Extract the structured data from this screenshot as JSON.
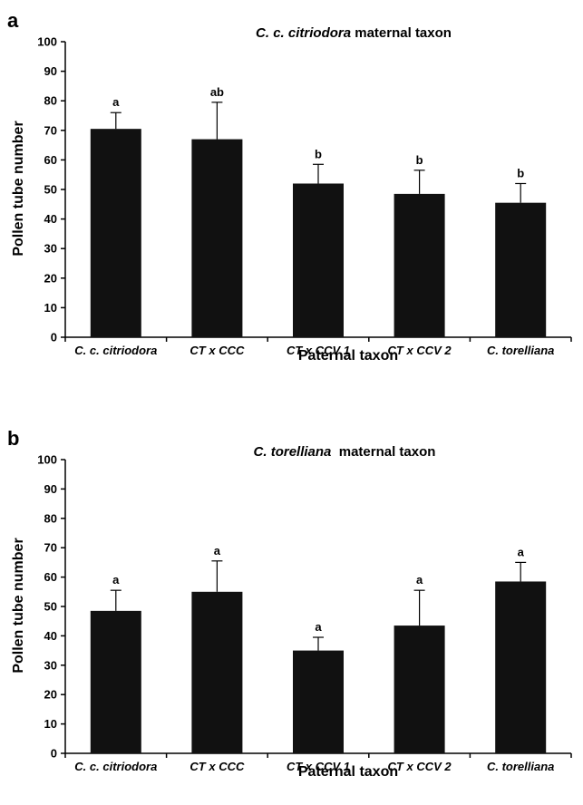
{
  "chart_data": [
    {
      "type": "bar",
      "panel": "a",
      "title_italic": "C. c. citriodora",
      "title_rest": " maternal taxon",
      "xlabel": "Paternal taxon",
      "ylabel": "Pollen tube number",
      "ylim": [
        0,
        100
      ],
      "yticks": [
        0,
        10,
        20,
        30,
        40,
        50,
        60,
        70,
        80,
        90,
        100
      ],
      "categories": [
        "C. c. citriodora",
        "CT x CCC",
        "CT x CCV 1",
        "CT x CCV 2",
        "C. torelliana"
      ],
      "values": [
        70.5,
        67,
        52,
        48.5,
        45.5
      ],
      "errors": [
        5.5,
        12.5,
        6.5,
        8,
        6.5
      ],
      "significance": [
        "a",
        "ab",
        "b",
        "b",
        "b"
      ],
      "bar_color": "#111111"
    },
    {
      "type": "bar",
      "panel": "b",
      "title_italic": "C. torelliana",
      "title_rest": "  maternal taxon",
      "xlabel": "Paternal taxon",
      "ylabel": "Pollen tube number",
      "ylim": [
        0,
        100
      ],
      "yticks": [
        0,
        10,
        20,
        30,
        40,
        50,
        60,
        70,
        80,
        90,
        100
      ],
      "categories": [
        "C. c. citriodora",
        "CT x CCC",
        "CT x CCV 1",
        "CT x CCV 2",
        "C. torelliana"
      ],
      "values": [
        48.5,
        55,
        35,
        43.5,
        58.5
      ],
      "errors": [
        7,
        10.5,
        4.5,
        12,
        6.5
      ],
      "significance": [
        "a",
        "a",
        "a",
        "a",
        "a"
      ],
      "bar_color": "#111111"
    }
  ]
}
